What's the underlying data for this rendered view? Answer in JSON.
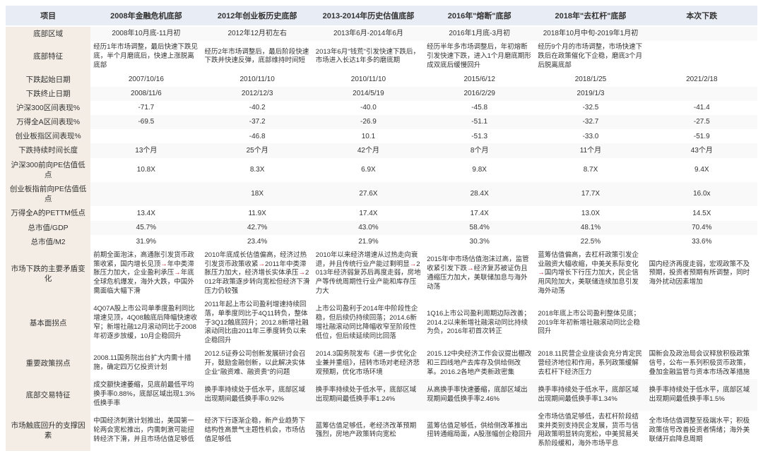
{
  "headers": [
    "项目",
    "2008年金融危机底部",
    "2012年创业板历史底部",
    "2013-2014年历史估值底部",
    "2016年\"熔断\"底部",
    "2018年\"去杠杆\"底部",
    "本次下跌"
  ],
  "rows": [
    {
      "hdr": "底部区域",
      "cells": [
        "2008年10月底-11月初",
        "2012年12月初左右",
        "2013年6月-2014年6月",
        "2016年1月底-3月初",
        "2018年10月中旬-2019年1月初",
        ""
      ],
      "band": true
    },
    {
      "hdr": "底部特征",
      "text": true,
      "cells": [
        "经历1年市场调整，最后快速下跌见底，半个月磨底后，快速上涨脱离底部",
        "经历2年市场调整后，最后阶段快速下跌并快速反弹，底部维持时间短",
        "2013年6月\"钱荒\"引发快速下跌后，市场进入长达1年多的磨底期",
        "经历半年多市场调整后，年初熔断引发快速下跌，进入1个月磨底期形成双底后缓慢回升",
        "经历9个月的市场调整，市场快速下跌后在政策催化下企稳，磨底3个月后脱离底部",
        ""
      ]
    },
    {
      "hdr": "下跌起始日期",
      "cells": [
        "2007/10/16",
        "2010/11/10",
        "2010/11/10",
        "2015/6/12",
        "2018/1/25",
        "2021/2/18"
      ]
    },
    {
      "hdr": "下跌终止日期",
      "cells": [
        "2008/11/6",
        "2012/12/3",
        "2014/5/19",
        "2016/2/29",
        "2019/1/3",
        ""
      ],
      "band": true
    },
    {
      "hdr": "沪深300区间表现%",
      "cells": [
        "-71.7",
        "-40.2",
        "-40.0",
        "-45.8",
        "-32.5",
        "-41.4"
      ]
    },
    {
      "hdr": "万得全A区间表现%",
      "cells": [
        "-69.5",
        "-37.2",
        "-26.9",
        "-51.1",
        "-32.7",
        "-27.5"
      ],
      "band": true
    },
    {
      "hdr": "创业板指区间表现%",
      "cells": [
        "",
        "-46.8",
        "10.1",
        "-51.3",
        "-33.0",
        "-51.9"
      ]
    },
    {
      "hdr": "下跌持续时间长度",
      "cells": [
        "13个月",
        "25个月",
        "42个月",
        "8个月",
        "11个月",
        "43个月"
      ],
      "band": true
    },
    {
      "hdr": "沪深300前向PE估值低点",
      "cells": [
        "10.8X",
        "8.3X",
        "6.9X",
        "9.8X",
        "8.7X",
        "9.4X"
      ]
    },
    {
      "hdr": "创业板指前向PE估值低点",
      "cells": [
        "",
        "18X",
        "27.6X",
        "28.4X",
        "17.7X",
        "16.0x"
      ],
      "band": true
    },
    {
      "hdr": "万得全A的PETTM低点",
      "cells": [
        "13.4X",
        "11.9X",
        "17.4X",
        "17.4X",
        "13.0X",
        "14.5X"
      ]
    },
    {
      "hdr": "总市值/GDP",
      "cells": [
        "45.7%",
        "42.7%",
        "43.0%",
        "58.4%",
        "48.1%",
        "70.4%"
      ],
      "band": true
    },
    {
      "hdr": "总市值/M2",
      "cells": [
        "31.9%",
        "23.4%",
        "21.9%",
        "30.3%",
        "22.5%",
        "33.6%"
      ]
    },
    {
      "hdr": "市场下跌的主要矛盾变化",
      "text": true,
      "cells": [
        [
          "前期全面泡沫，高通胀引发货币政策收紧，国内增长见顶",
          {
            "t": "→",
            "red": true
          },
          "年中类滞胀压力加大，企业盈利承压",
          {
            "t": "→",
            "red": true
          },
          "年底全球危机爆发，海外大跌，中国外需面临大幅下滑"
        ],
        [
          "2010年底成长估值偏高，经济过热引发货币政策收紧",
          {
            "t": "→",
            "red": true
          },
          "2011年中类滞胀压力加大，经济增长实体承压",
          {
            "t": "→",
            "red": true
          },
          "2012年政策逐步转向宽松但经济下滑压力仍较强"
        ],
        [
          "2010年以来经济增速从过热走向衰退，并且传统行业产能过剩明显",
          {
            "t": "→",
            "red": true
          },
          "2013年经济弱复苏后再度走弱，房地产等传统周期性行业产能和库存压力大"
        ],
        [
          "2015年中市场估值泡沫过高，监管收紧引发下跌",
          {
            "t": "→",
            "red": true
          },
          "经济复苏被证伪且通缩压力加大，美联储加息与海外动荡"
        ],
        [
          "蓝筹估值偏高，去杠杆政策引发企业融资大幅收缩，中美关系际变化",
          {
            "t": "→",
            "red": true
          },
          "国内增长下行压力加大，民企信用风险加大，美联储连续加息引发海外动荡"
        ],
        "国内经济再度走弱，宏观政策不及预期，投资者预期有所调整，同时海外扰动因素增加"
      ]
    },
    {
      "hdr": "基本面拐点",
      "text": true,
      "cells": [
        "4Q07A股上市公司单季度盈利同比增速见顶，4Q08触底后降幅快速收窄；新增社融12月滚动同比于2008年初逐步放缓，10月企稳回升",
        "2011年起上市公司盈利增速持续回落，单季度同比于4Q11转负，整体于3Q12触底回升；2012.8新增社融滚动同比由2011年三季度转负以来企稳回升",
        "上市公司盈利于2014年中阶段性企稳，但后续仍持续回落；2014.6新增社融滚动同比降幅收窄至阶段性低位，但后续延续同比回落",
        "1Q16上市公司盈利周期边际改善；2014.2以来新增社融滚动同比持续为负，2016年初首次转正",
        "2018年底上市公司盈利整体见底；2019年年初新增社融滚动同比企稳回升",
        ""
      ]
    },
    {
      "hdr": "重要政策拐点",
      "text": true,
      "cells": [
        "2008.11国务院出台扩大内需十措施，确定四万亿投资计划",
        "2012.5证券公司创新发展研讨会召开，鼓励金融创新，以此解决实体企业\"融资难、融资贵\"的问题",
        "2014.3国务院发布《进一步优化企业兼并重组》，扭转市场对老经济悲观预期，优化市场环境",
        "2015.12中央经济工作会议提出棚改和三四线地产去库存及供给侧改革。2016.2各地产类新政密集",
        "2018.11民营企业座谈会充分肯定民营经济地位和作用，系列政策缓解去杠杆下经济压力",
        "国新会及政治局会议释放积极政策信号，公布一系列积极货币政策，叠加金融监管与资本市场改革措施"
      ]
    },
    {
      "hdr": "底部交易特征",
      "text": true,
      "band": true,
      "cells": [
        "成交额快速萎缩，见底前最低平均换手率0.88%，底部区域出现1.3%低换手率",
        "换手率持续处于低水平，底部区域出现期间最低换手率0.92%",
        "换手率持续处于低水平，底部区域出现期间最低换手率1.24%",
        "从高换手率快速萎缩，底部区域出现期间最低换手率2.46%",
        "换手率持续处于低水平，底部区域出现期间最低换手率1.34%",
        "换手率持续处于低水平，底部区域出现期间最低换手率1.5%"
      ]
    },
    {
      "hdr": "市场触底回升的支撑因素",
      "text": true,
      "cells": [
        "中国经济刺激计划推出，美国第一轮两会宽松推出，内需刺激可能扭转经济下滑，并且市场估值足够低",
        "经济下行逐渐企稳，新产业趋势下结构性高景气主题性机会，市场估值足够低",
        "蓝筹估值足够低，老经济改革预期强烈，房地产政策转向宽松",
        "蓝筹估值足够低，供给侧改革推出扭转通缩局面，A股涨幅创企稳回升",
        "全市场估值足够低，去杠杆阶段结束并类别支持民企发展，货币与信用政策明显转向宽松，中美贸易关系阶段缓和，海外市场平息",
        "全市场估值调整至极端水平；积极政策信号改善投资者情绪；海外美联储开启降息周期"
      ]
    }
  ]
}
